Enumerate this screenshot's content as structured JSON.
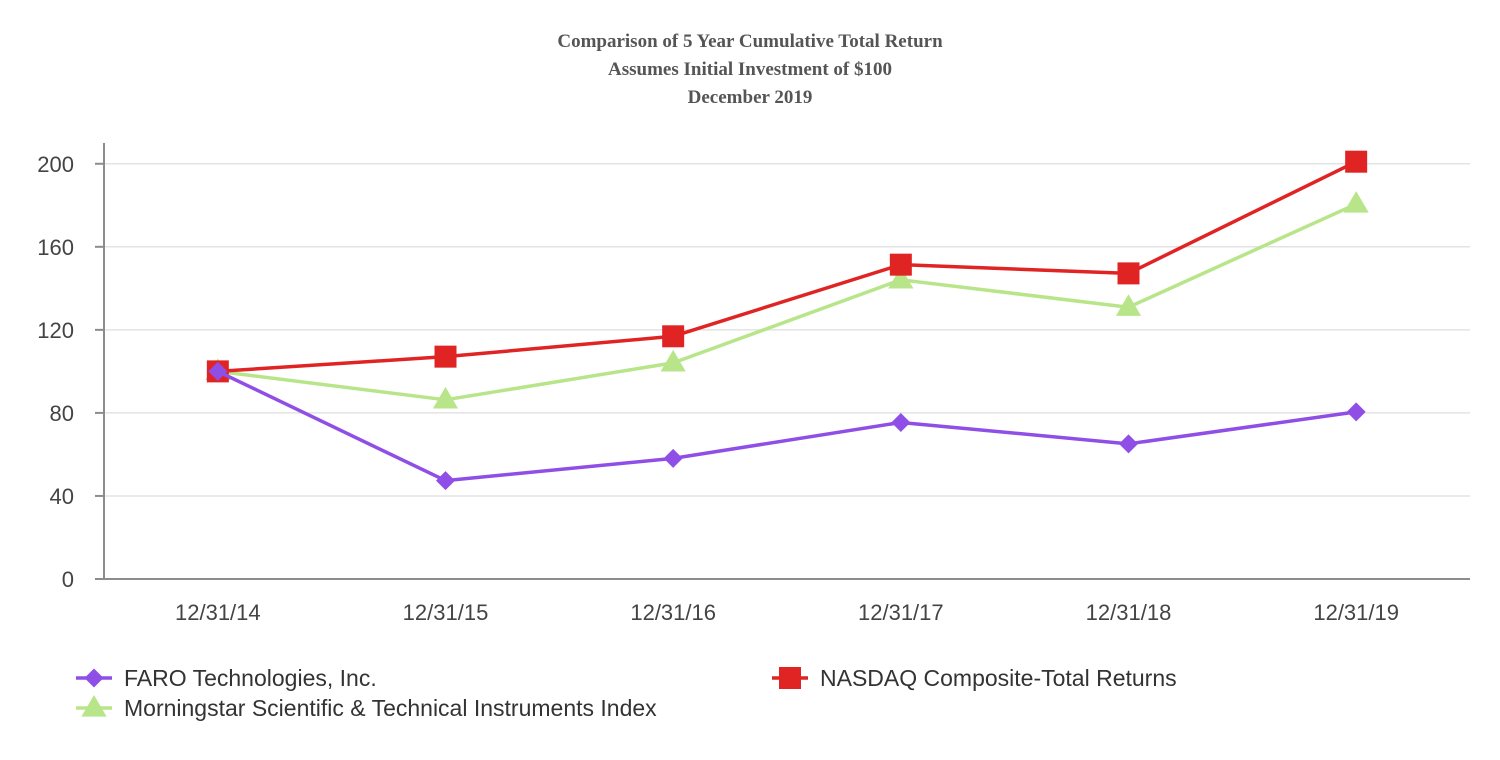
{
  "chart_data": {
    "type": "line",
    "title": "Comparison of 5 Year Cumulative Total Return",
    "subtitle": "Assumes Initial Investment of $100",
    "subtitle2": "December 2019",
    "xlabel": "",
    "ylabel": "",
    "ylim": [
      0,
      210
    ],
    "yticks": [
      0,
      40,
      80,
      120,
      160,
      200
    ],
    "ytick_labels": [
      "0",
      "40",
      "80",
      "120",
      "160",
      "200"
    ],
    "grid": true,
    "legend_position": "bottom",
    "categories": [
      "12/31/14",
      "12/31/15",
      "12/31/16",
      "12/31/17",
      "12/31/18",
      "12/31/19"
    ],
    "series": [
      {
        "name": "FARO Technologies, Inc.",
        "color": "#8f4fe6",
        "marker": "diamond",
        "values": [
          100.0,
          47.4,
          58.1,
          75.4,
          65.1,
          80.5
        ]
      },
      {
        "name": "NASDAQ Composite-Total Returns",
        "color": "#e02424",
        "marker": "square",
        "values": [
          100.0,
          107.1,
          116.9,
          151.4,
          147.2,
          201.0
        ]
      },
      {
        "name": "Morningstar Scientific & Technical Instruments Index",
        "color": "#b8e58a",
        "marker": "triangle",
        "values": [
          100.0,
          86.3,
          104.1,
          144.1,
          130.9,
          180.6
        ]
      }
    ]
  }
}
